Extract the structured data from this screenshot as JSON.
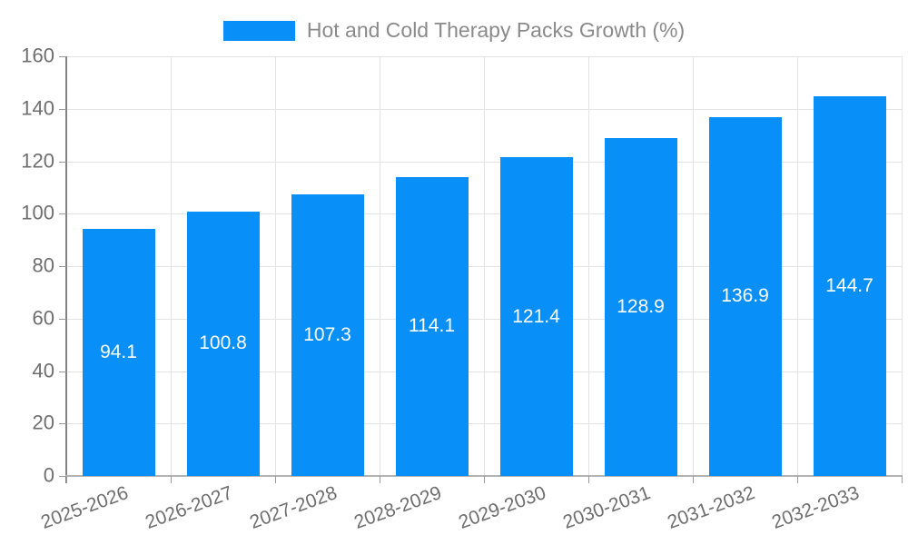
{
  "chart_data": {
    "type": "bar",
    "title": "Hot and Cold Therapy Packs Growth (%)",
    "legend": [
      "Hot and Cold Therapy Packs Growth (%)"
    ],
    "legend_position": "top-center",
    "categories": [
      "2025-2026",
      "2026-2027",
      "2027-2028",
      "2028-2029",
      "2029-2030",
      "2030-2031",
      "2031-2032",
      "2032-2033"
    ],
    "values": [
      94.1,
      100.8,
      107.3,
      114.1,
      121.4,
      128.9,
      136.9,
      144.7
    ],
    "value_labels": [
      "94.1",
      "100.8",
      "107.3",
      "114.1",
      "121.4",
      "128.9",
      "136.9",
      "144.7"
    ],
    "xlabel": "",
    "ylabel": "",
    "ylim": [
      0,
      160
    ],
    "yticks": [
      0,
      20,
      40,
      60,
      80,
      100,
      120,
      140,
      160
    ],
    "grid": true,
    "x_label_rotation_deg": -20,
    "colors": {
      "bar": "#0990f8",
      "value_label": "#ffffff",
      "axis_label": "#6e6e6e",
      "legend_text": "#8a8a8a",
      "gridline": "#e3e3e3",
      "y_axis_line": "#848484",
      "x_axis_line": "#b3b3b3",
      "background": "#ffffff"
    }
  }
}
